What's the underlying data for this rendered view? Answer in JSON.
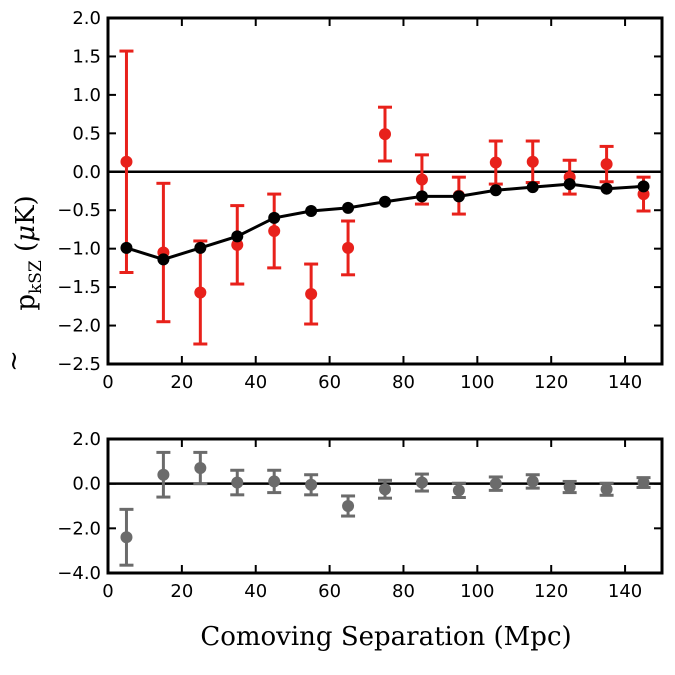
{
  "figure": {
    "xlabel": "Comoving Separation (Mpc)",
    "ylabel": {
      "symbol": "p",
      "subscript": "kSZ",
      "unit_open": " (",
      "unit_mu": "μ",
      "unit_rest": "K)"
    }
  },
  "chart_data": [
    {
      "type": "scatter",
      "panel": "top",
      "xlim": [
        0,
        150
      ],
      "ylim": [
        -2.5,
        2.0
      ],
      "xticks": [
        0,
        20,
        40,
        60,
        80,
        100,
        120,
        140
      ],
      "yticks": [
        -2.5,
        -2.0,
        -1.5,
        -1.0,
        -0.5,
        0.0,
        0.5,
        1.0,
        1.5,
        2.0
      ],
      "ytick_labels": [
        "−2.5",
        "−2.0",
        "−1.5",
        "−1.0",
        "−0.5",
        "0.0",
        "0.5",
        "1.0",
        "1.5",
        "2.0"
      ],
      "hline": 0,
      "grid": false,
      "series": [
        {
          "color": "#e8211b",
          "style": "errorbar",
          "x": [
            5,
            15,
            25,
            35,
            45,
            55,
            65,
            75,
            85,
            95,
            105,
            115,
            125,
            135,
            145
          ],
          "y": [
            0.13,
            -1.05,
            -1.57,
            -0.95,
            -0.77,
            -1.59,
            -0.99,
            0.49,
            -0.1,
            -0.31,
            0.12,
            0.13,
            -0.07,
            0.1,
            -0.29
          ],
          "yerr": [
            1.44,
            0.9,
            0.67,
            0.51,
            0.48,
            0.39,
            0.35,
            0.35,
            0.32,
            0.24,
            0.28,
            0.27,
            0.22,
            0.23,
            0.22
          ]
        },
        {
          "color": "#000000",
          "style": "line-marker",
          "x": [
            5,
            15,
            25,
            35,
            45,
            55,
            65,
            75,
            85,
            95,
            105,
            115,
            125,
            135,
            145
          ],
          "y": [
            -0.99,
            -1.14,
            -0.99,
            -0.84,
            -0.6,
            -0.51,
            -0.47,
            -0.39,
            -0.32,
            -0.32,
            -0.24,
            -0.2,
            -0.16,
            -0.22,
            -0.19
          ]
        }
      ]
    },
    {
      "type": "scatter",
      "panel": "bottom",
      "xlim": [
        0,
        150
      ],
      "ylim": [
        -4.0,
        2.0
      ],
      "xticks": [
        0,
        20,
        40,
        60,
        80,
        100,
        120,
        140
      ],
      "yticks": [
        -4.0,
        -2.0,
        0.0,
        2.0
      ],
      "ytick_labels": [
        "−4.0",
        "−2.0",
        "0.0",
        "2.0"
      ],
      "hline": 0,
      "grid": false,
      "series": [
        {
          "color": "#6b6b6b",
          "style": "errorbar",
          "x": [
            5,
            15,
            25,
            35,
            45,
            55,
            65,
            75,
            85,
            95,
            105,
            115,
            125,
            135,
            145
          ],
          "y": [
            -2.4,
            0.4,
            0.7,
            0.05,
            0.1,
            -0.05,
            -1.0,
            -0.25,
            0.05,
            -0.3,
            0.0,
            0.1,
            -0.15,
            -0.25,
            0.05
          ],
          "yerr": [
            1.25,
            1.0,
            0.7,
            0.55,
            0.5,
            0.45,
            0.45,
            0.4,
            0.38,
            0.32,
            0.3,
            0.3,
            0.25,
            0.27,
            0.22
          ]
        }
      ]
    }
  ]
}
